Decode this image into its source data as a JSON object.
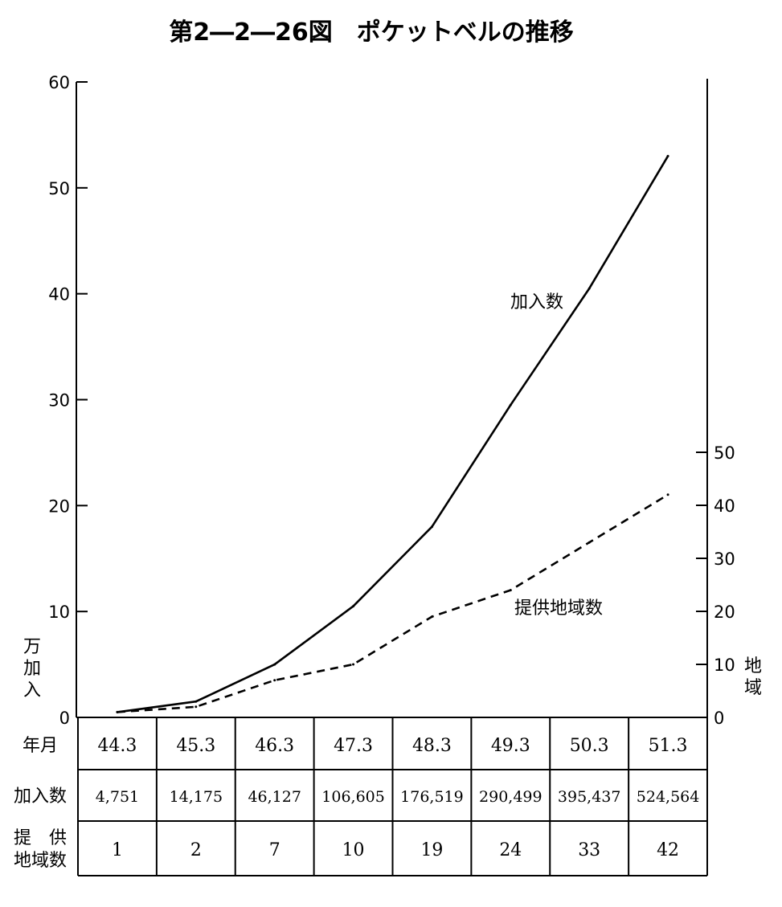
{
  "chart_data": {
    "type": "line",
    "title": "第2―2―26図　ポケットベルの推移",
    "left_axis": {
      "unit_label": [
        "万",
        "加",
        "入"
      ],
      "ylim": [
        0,
        60
      ],
      "ticks": [
        "0",
        "10",
        "20",
        "30",
        "40",
        "50",
        "60"
      ]
    },
    "right_axis": {
      "unit_label": [
        "地",
        "域"
      ],
      "ylim": [
        0,
        50
      ],
      "ticks": [
        "0",
        "10",
        "20",
        "30",
        "40",
        "50"
      ]
    },
    "x": [
      "44.3",
      "45.3",
      "46.3",
      "47.3",
      "48.3",
      "49.3",
      "50.3",
      "51.3"
    ],
    "series": [
      {
        "name": "加入数",
        "axis": "left",
        "style": "solid",
        "values": [
          0.5,
          1.5,
          5,
          10.5,
          18,
          29.5,
          40.5,
          53
        ]
      },
      {
        "name": "提供地域数",
        "axis": "right",
        "style": "dashed",
        "values": [
          1,
          2,
          7,
          10,
          19,
          24,
          33,
          42
        ]
      }
    ],
    "table": {
      "header_label": "年月",
      "rows": [
        {
          "label": "加入数",
          "values": [
            "4,751",
            "14,175",
            "46,127",
            "106,605",
            "176,519",
            "290,499",
            "395,437",
            "524,564"
          ]
        },
        {
          "label_lines": [
            "提　供",
            "地域数"
          ],
          "values": [
            "1",
            "2",
            "7",
            "10",
            "19",
            "24",
            "33",
            "42"
          ]
        }
      ]
    },
    "grid": false,
    "legend": "inline labels"
  }
}
